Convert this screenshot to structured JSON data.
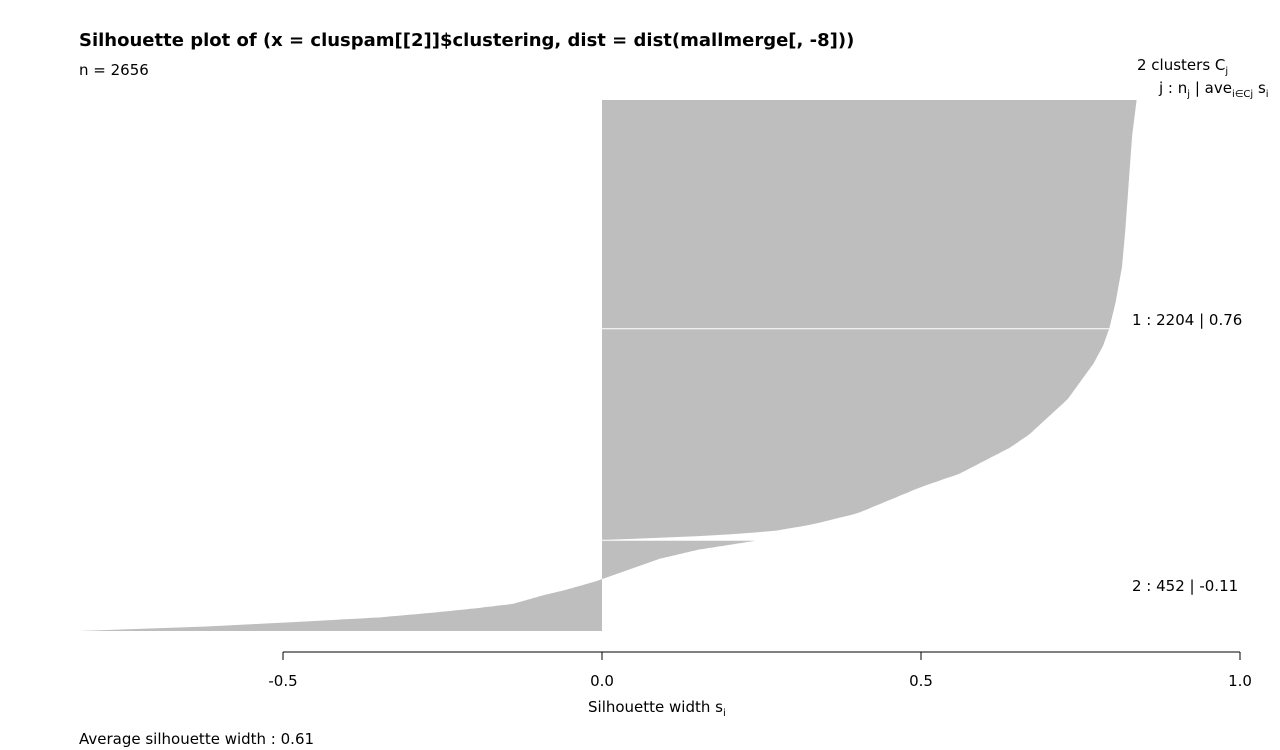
{
  "chart_data": {
    "type": "silhouette",
    "title": "Silhouette plot of (x = cluspam[[2]]$clustering, dist = dist(mallmerge[, -8]))",
    "n_label": "n = 2656",
    "xlabel": "Silhouette width s",
    "xlabel_sub": "i",
    "xlim": [
      -0.82,
      1.0
    ],
    "x_ticks": [
      -0.5,
      0.0,
      0.5,
      1.0
    ],
    "x_tick_labels": [
      "-0.5",
      "0.0",
      "0.5",
      "1.0"
    ],
    "bar_color": "#bebebe",
    "legend": {
      "header": "2  clusters  C",
      "header_sub": "j",
      "subheader": {
        "j_n": "j :  n",
        "j_n_sub": "j",
        "bar_ave": " | ave",
        "i_in_cj": "i∈Cj",
        "s": " s",
        "s_sub": "i"
      }
    },
    "clusters": [
      {
        "id": 1,
        "n": 2204,
        "avg_width": 0.76,
        "label": "1 :   2204  |  0.76",
        "profile": [
          [
            0.0,
            0.838
          ],
          [
            0.08,
            0.831
          ],
          [
            0.2,
            0.825
          ],
          [
            0.3,
            0.82
          ],
          [
            0.38,
            0.815
          ],
          [
            0.46,
            0.805
          ],
          [
            0.52,
            0.795
          ],
          [
            0.56,
            0.785
          ],
          [
            0.6,
            0.77
          ],
          [
            0.64,
            0.75
          ],
          [
            0.68,
            0.73
          ],
          [
            0.72,
            0.7
          ],
          [
            0.76,
            0.67
          ],
          [
            0.79,
            0.64
          ],
          [
            0.82,
            0.6
          ],
          [
            0.85,
            0.56
          ],
          [
            0.88,
            0.5
          ],
          [
            0.91,
            0.45
          ],
          [
            0.94,
            0.4
          ],
          [
            0.965,
            0.33
          ],
          [
            0.98,
            0.27
          ],
          [
            0.99,
            0.18
          ],
          [
            1.0,
            0.01
          ]
        ]
      },
      {
        "id": 2,
        "n": 452,
        "avg_width": -0.11,
        "label": "2 :   452  |  -0.11",
        "profile": [
          [
            0.0,
            0.24
          ],
          [
            0.1,
            0.15
          ],
          [
            0.2,
            0.09
          ],
          [
            0.3,
            0.05
          ],
          [
            0.4,
            0.01
          ],
          [
            0.45,
            -0.01
          ],
          [
            0.55,
            -0.06
          ],
          [
            0.6,
            -0.09
          ],
          [
            0.7,
            -0.14
          ],
          [
            0.75,
            -0.2
          ],
          [
            0.8,
            -0.27
          ],
          [
            0.85,
            -0.35
          ],
          [
            0.9,
            -0.48
          ],
          [
            0.95,
            -0.62
          ],
          [
            1.0,
            -0.82
          ]
        ]
      }
    ],
    "average_label": "Average silhouette width :  0.61",
    "average_width": 0.61
  }
}
